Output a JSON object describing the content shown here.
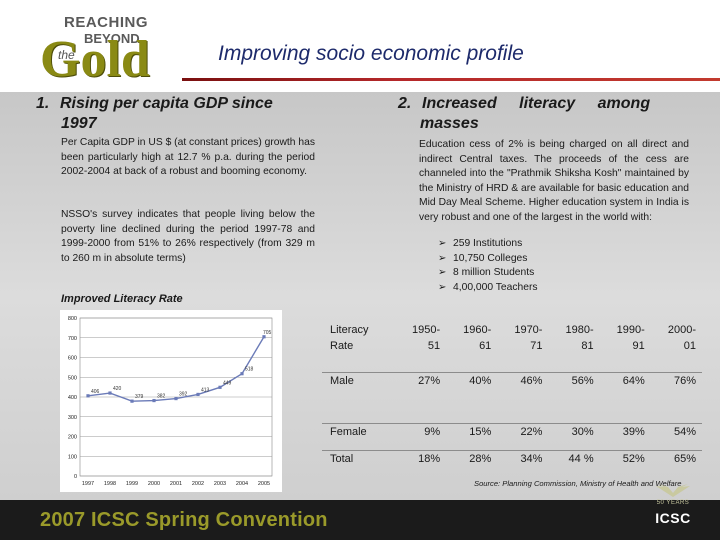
{
  "logo": {
    "line1": "REACHING",
    "line2": "BEYOND",
    "line3": "the",
    "word": "Gold"
  },
  "title": "Improving socio economic profile",
  "section1": {
    "number": "1.",
    "heading_line1": "Rising per capita GDP since",
    "heading_line2": "1997",
    "para1": "Per Capita GDP in US $ (at constant prices) growth has been particularly high at 12.7 % p.a. during the period 2002-2004 at back of a robust and booming economy.",
    "para2": "NSSO's survey indicates that people living below the poverty line declined during the period 1997-78 and 1999-2000 from 51% to 26% respectively (from 329 m to 260 m in absolute terms)"
  },
  "section2": {
    "number": "2.",
    "heading_line1": "Increased literacy among",
    "heading_line2": "masses",
    "para": "Education cess of 2% is being charged on all direct and indirect Central taxes. The proceeds of the cess are channeled into the \"Prathmik Shiksha Kosh\" maintained by the Ministry of HRD & are available for basic education and Mid Day Meal Scheme. Higher education system in India is very robust and one of the largest in the world with:",
    "bullets": [
      "259 Institutions",
      "10,750 Colleges",
      "8 million Students",
      "4,00,000 Teachers"
    ]
  },
  "chart_caption": "Improved Literacy Rate",
  "chart_data": {
    "type": "line",
    "title": "",
    "x": [
      "1997",
      "1998",
      "1999",
      "2000",
      "2001",
      "2002",
      "2003",
      "2004",
      "2005"
    ],
    "series": [
      {
        "values": [
          406,
          420,
          379,
          382,
          392,
          413,
          449,
          518,
          705
        ]
      }
    ],
    "point_labels": [
      "406",
      "420",
      "379",
      "382",
      "392",
      "413",
      "449",
      "518",
      "705"
    ],
    "y_ticks": [
      "0",
      "100",
      "200",
      "300",
      "400",
      "500",
      "600",
      "700",
      "800"
    ],
    "ylim": [
      0,
      800
    ],
    "grid": true,
    "color": "#6b7bb8"
  },
  "table": {
    "header_label": [
      "Literacy",
      "Rate"
    ],
    "years": [
      [
        "1950-",
        "51"
      ],
      [
        "1960-",
        "61"
      ],
      [
        "1970-",
        "71"
      ],
      [
        "1980-",
        "81"
      ],
      [
        "1990-",
        "91"
      ],
      [
        "2000-",
        "01"
      ]
    ],
    "rows": [
      {
        "label": "Male",
        "values": [
          "27%",
          "40%",
          "46%",
          "56%",
          "64%",
          "76%"
        ]
      },
      {
        "label": "Female",
        "values": [
          "9%",
          "15%",
          "22%",
          "30%",
          "39%",
          "54%"
        ]
      },
      {
        "label": "Total",
        "values": [
          "18%",
          "28%",
          "34%",
          "44 %",
          "52%",
          "65%"
        ]
      }
    ]
  },
  "source": "Source: Planning Commission, Ministry of Health and Welfare",
  "footer": {
    "convention": "2007 ICSC Spring Convention",
    "badge_years": "50 YEARS",
    "badge_org": "ICSC"
  },
  "colors": {
    "title": "#1d2a6b",
    "rule": "#b5282a",
    "gold": "#8a8a14",
    "footer_bg": "#1b1b1b",
    "footer_text": "#9a9a2a"
  }
}
